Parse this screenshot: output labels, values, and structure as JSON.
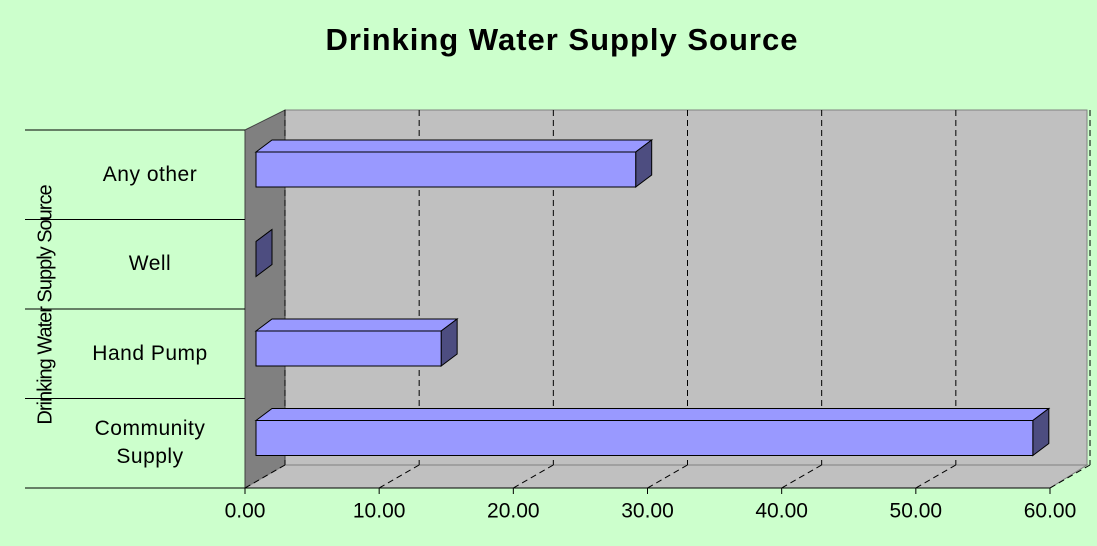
{
  "chart_data": {
    "type": "bar3d_horizontal",
    "title": "Drinking Water Supply Source",
    "y_label": "Drinking Water Supply Source",
    "categories": [
      "Community Supply",
      "Hand Pump",
      "Well",
      "Any other"
    ],
    "values": [
      57.9,
      13.8,
      0,
      28.3
    ],
    "color": "#9999ff",
    "xlim": [
      0,
      60
    ],
    "xticks": [
      {
        "value": 0,
        "label": "0.00"
      },
      {
        "value": 10,
        "label": "10.00"
      },
      {
        "value": 20,
        "label": "20.00"
      },
      {
        "value": 30,
        "label": "30.00"
      },
      {
        "value": 40,
        "label": "40.00"
      },
      {
        "value": 50,
        "label": "50.00"
      },
      {
        "value": 60,
        "label": "60.00"
      }
    ],
    "grid": true
  }
}
